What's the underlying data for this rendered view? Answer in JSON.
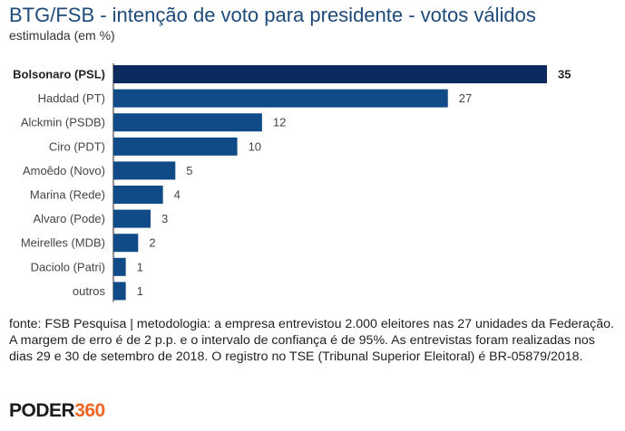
{
  "title": "BTG/FSB - intenção de voto para presidente - votos válidos",
  "subtitle": "estimulada (em %)",
  "source": "fonte: FSB Pesquisa | metodologia: a empresa entrevistou 2.000 eleitores nas 27 unidades da Federação. A margem de erro é de 2 p.p. e o intervalo de confiança é de 95%. As entrevistas foram realizadas nos dias 29 e 30 de setembro de 2018. O registro no TSE (Tribunal Superior Eleitoral) é BR-05879/2018.",
  "logo": {
    "part1": "PODER",
    "part2": "360"
  },
  "colors": {
    "highlight": "#0d2a5e",
    "bar": "#114b87",
    "logo_accent": "#f26522",
    "title": "#1d4a7a"
  },
  "chart_data": {
    "type": "bar",
    "orientation": "horizontal",
    "title": "BTG/FSB - intenção de voto para presidente - votos válidos",
    "subtitle": "estimulada (em %)",
    "categories": [
      "Bolsonaro (PSL)",
      "Haddad (PT)",
      "Alckmin (PSDB)",
      "Ciro (PDT)",
      "Amoêdo (Novo)",
      "Marina (Rede)",
      "Alvaro (Pode)",
      "Meirelles (MDB)",
      "Daciolo (Patri)",
      "outros"
    ],
    "values": [
      35,
      27,
      12,
      10,
      5,
      4,
      3,
      2,
      1,
      1
    ],
    "highlight_index": 0,
    "xlim": [
      0,
      35
    ],
    "unit": "%",
    "grid": false,
    "legend": false
  }
}
